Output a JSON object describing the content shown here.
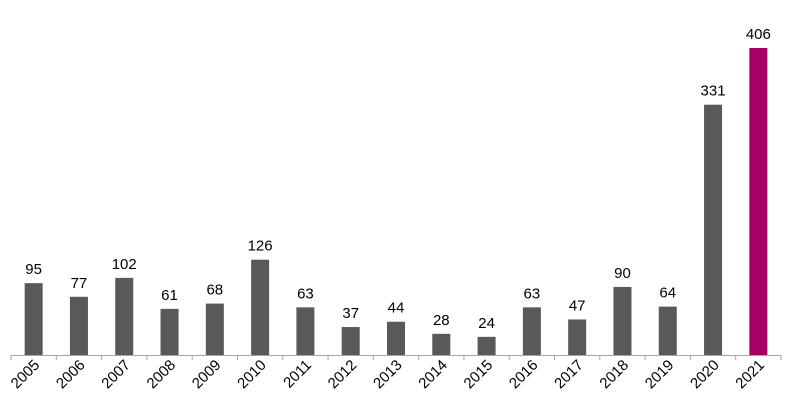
{
  "chart_data": {
    "type": "bar",
    "categories": [
      "2005",
      "2006",
      "2007",
      "2008",
      "2009",
      "2010",
      "2011",
      "2012",
      "2013",
      "2014",
      "2015",
      "2016",
      "2017",
      "2018",
      "2019",
      "2020",
      "2021"
    ],
    "values": [
      95,
      77,
      102,
      61,
      68,
      126,
      63,
      37,
      44,
      28,
      24,
      63,
      47,
      90,
      64,
      331,
      406
    ],
    "title": "",
    "xlabel": "",
    "ylabel": "",
    "ylim": [
      0,
      406
    ],
    "grid": false,
    "legend": "none",
    "data_labels": true,
    "colors": {
      "default_bar": "#595959",
      "highlight_bar": "#a50064",
      "axis": "#a6a6a6",
      "text": "#000000"
    },
    "highlight_category": "2021"
  }
}
